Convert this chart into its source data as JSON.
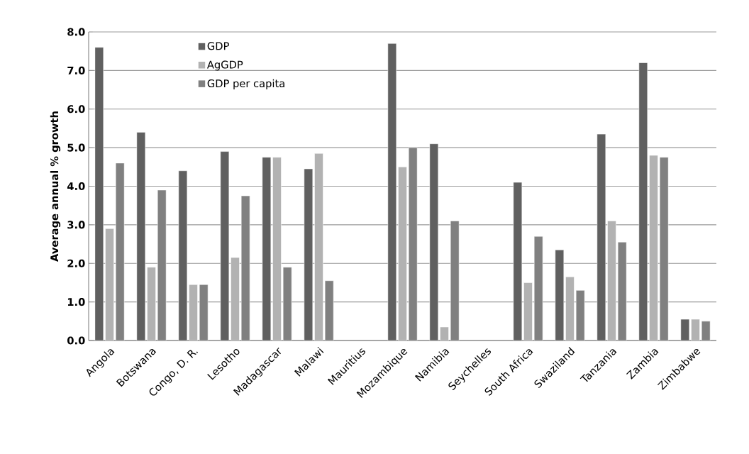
{
  "chart_data": {
    "type": "bar",
    "ylabel": "Average annual % growth",
    "categories": [
      "Angola",
      "Botswana",
      "Congo, D. R.",
      "Lesotho",
      "Madagascar",
      "Malawi",
      "Mauritius",
      "Mozambique",
      "Namibia",
      "Seychelles",
      "South Africa",
      "Swaziland",
      "Tanzania",
      "Zambia",
      "Zimbabwe"
    ],
    "series": [
      {
        "name": "GDP",
        "color": "#606060",
        "values": [
          7.6,
          5.4,
          4.4,
          4.9,
          4.75,
          4.45,
          null,
          7.7,
          5.1,
          null,
          4.1,
          2.35,
          5.35,
          7.2,
          0.55
        ]
      },
      {
        "name": "AgGDP",
        "color": "#b2b2b2",
        "values": [
          2.9,
          1.9,
          1.45,
          2.15,
          4.75,
          4.85,
          null,
          4.5,
          0.35,
          null,
          1.5,
          1.65,
          3.1,
          4.8,
          0.55
        ]
      },
      {
        "name": "GDP per capita",
        "color": "#808080",
        "values": [
          4.6,
          3.9,
          1.45,
          3.75,
          1.9,
          1.55,
          null,
          5.0,
          3.1,
          null,
          2.7,
          1.3,
          2.55,
          4.75,
          0.5
        ]
      }
    ],
    "ylim": [
      0,
      8
    ],
    "yticks": [
      {
        "value": 0,
        "label": "0.0"
      },
      {
        "value": 1,
        "label": "1.0"
      },
      {
        "value": 2,
        "label": "2.0"
      },
      {
        "value": 3,
        "label": "3.0"
      },
      {
        "value": 4,
        "label": "4.0"
      },
      {
        "value": 5,
        "label": "5.0"
      },
      {
        "value": 6,
        "label": "6.0"
      },
      {
        "value": 7,
        "label": "7.0"
      },
      {
        "value": 8,
        "label": "8.0"
      }
    ],
    "grid": "y",
    "legend": "top left"
  }
}
